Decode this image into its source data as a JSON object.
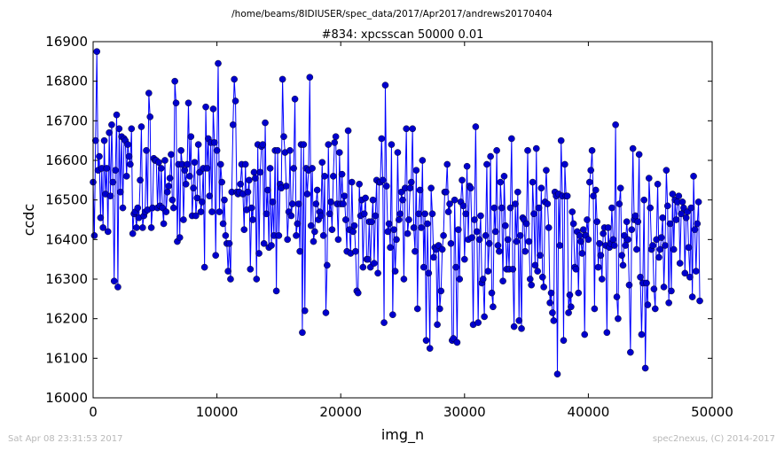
{
  "header": {
    "path": "/home/beams/8IDIUSER/spec_data/2017/Apr2017/andrews20170404"
  },
  "footer": {
    "timestamp": "Sat Apr 08 23:31:53 2017",
    "credit": "spec2nexus, (C) 2014-2017"
  },
  "chart_data": {
    "type": "line",
    "title": "#834: xpcsscan 50000 0.01",
    "xlabel": "img_n",
    "ylabel": "ccdc",
    "xlim": [
      0,
      50000
    ],
    "ylim": [
      16000,
      16900
    ],
    "xticks": [
      0,
      10000,
      20000,
      30000,
      40000,
      50000
    ],
    "yticks": [
      16000,
      16100,
      16200,
      16300,
      16400,
      16500,
      16600,
      16700,
      16800,
      16900
    ],
    "grid": false,
    "line_color": "#0000ff",
    "marker_color": "#0000cc",
    "x_start": 0,
    "x_step": 100,
    "values": [
      16545,
      16410,
      16650,
      16875,
      16575,
      16610,
      16455,
      16580,
      16430,
      16650,
      16515,
      16580,
      16420,
      16670,
      16510,
      16690,
      16545,
      16295,
      16575,
      16715,
      16280,
      16680,
      16520,
      16660,
      16480,
      16655,
      16650,
      16560,
      16640,
      16610,
      16590,
      16680,
      16415,
      16465,
      16470,
      16430,
      16480,
      16455,
      16550,
      16685,
      16430,
      16460,
      16470,
      16625,
      16475,
      16770,
      16710,
      16430,
      16480,
      16605,
      16600,
      16600,
      16480,
      16595,
      16485,
      16580,
      16480,
      16440,
      16600,
      16470,
      16520,
      16535,
      16555,
      16615,
      16500,
      16480,
      16800,
      16745,
      16395,
      16590,
      16405,
      16625,
      16590,
      16450,
      16575,
      16540,
      16590,
      16745,
      16560,
      16660,
      16460,
      16530,
      16595,
      16460,
      16505,
      16640,
      16570,
      16470,
      16495,
      16580,
      16330,
      16735,
      16580,
      16655,
      16510,
      16645,
      16470,
      16730,
      16645,
      16360,
      16625,
      16845,
      16470,
      16590,
      16545,
      16440,
      16500,
      16410,
      16390,
      16320,
      16390,
      16300,
      16520,
      16690,
      16805,
      16750,
      16520,
      16515,
      16520,
      16540,
      16590,
      16515,
      16425,
      16590,
      16475,
      16520,
      16550,
      16325,
      16480,
      16450,
      16570,
      16555,
      16300,
      16640,
      16365,
      16570,
      16635,
      16640,
      16390,
      16695,
      16465,
      16525,
      16380,
      16580,
      16385,
      16495,
      16410,
      16625,
      16270,
      16625,
      16410,
      16540,
      16530,
      16805,
      16660,
      16620,
      16535,
      16400,
      16470,
      16625,
      16460,
      16490,
      16580,
      16755,
      16410,
      16440,
      16490,
      16370,
      16640,
      16165,
      16640,
      16220,
      16580,
      16515,
      16575,
      16810,
      16435,
      16580,
      16395,
      16420,
      16490,
      16525,
      16450,
      16470,
      16460,
      16595,
      16410,
      16560,
      16215,
      16335,
      16640,
      16465,
      16495,
      16425,
      16560,
      16645,
      16660,
      16490,
      16400,
      16620,
      16490,
      16565,
      16490,
      16510,
      16450,
      16370,
      16675,
      16425,
      16365,
      16545,
      16420,
      16435,
      16370,
      16270,
      16265,
      16540,
      16460,
      16500,
      16330,
      16465,
      16505,
      16350,
      16350,
      16445,
      16330,
      16445,
      16500,
      16340,
      16460,
      16550,
      16315,
      16545,
      16545,
      16655,
      16550,
      16190,
      16790,
      16535,
      16420,
      16440,
      16380,
      16640,
      16210,
      16425,
      16320,
      16400,
      16620,
      16450,
      16465,
      16520,
      16500,
      16300,
      16530,
      16680,
      16415,
      16450,
      16530,
      16545,
      16680,
      16430,
      16370,
      16575,
      16225,
      16465,
      16525,
      16430,
      16600,
      16330,
      16465,
      16145,
      16440,
      16315,
      16125,
      16530,
      16465,
      16355,
      16380,
      16375,
      16185,
      16385,
      16225,
      16270,
      16375,
      16410,
      16520,
      16520,
      16590,
      16470,
      16490,
      16390,
      16145,
      16150,
      16500,
      16330,
      16140,
      16425,
      16300,
      16495,
      16550,
      16485,
      16350,
      16465,
      16585,
      16400,
      16535,
      16530,
      16405,
      16185,
      16450,
      16685,
      16420,
      16190,
      16400,
      16460,
      16290,
      16300,
      16205,
      16410,
      16590,
      16320,
      16390,
      16610,
      16265,
      16230,
      16480,
      16420,
      16625,
      16385,
      16370,
      16545,
      16480,
      16295,
      16560,
      16435,
      16325,
      16400,
      16325,
      16480,
      16655,
      16325,
      16180,
      16490,
      16395,
      16520,
      16195,
      16410,
      16175,
      16455,
      16450,
      16370,
      16440,
      16625,
      16395,
      16300,
      16285,
      16545,
      16465,
      16335,
      16630,
      16320,
      16480,
      16360,
      16530,
      16305,
      16280,
      16495,
      16575,
      16490,
      16430,
      16240,
      16265,
      16215,
      16195,
      16520,
      16510,
      16060,
      16515,
      16385,
      16650,
      16510,
      16145,
      16590,
      16510,
      16510,
      16215,
      16260,
      16230,
      16470,
      16440,
      16330,
      16325,
      16420,
      16265,
      16410,
      16395,
      16365,
      16425,
      16160,
      16410,
      16450,
      16400,
      16545,
      16575,
      16625,
      16510,
      16225,
      16525,
      16445,
      16330,
      16390,
      16360,
      16300,
      16415,
      16430,
      16385,
      16165,
      16430,
      16380,
      16390,
      16480,
      16400,
      16385,
      16690,
      16255,
      16200,
      16490,
      16530,
      16360,
      16335,
      16410,
      16385,
      16445,
      16400,
      16285,
      16115,
      16425,
      16630,
      16450,
      16460,
      16375,
      16445,
      16615,
      16305,
      16160,
      16290,
      16500,
      16075,
      16290,
      16235,
      16555,
      16480,
      16375,
      16385,
      16275,
      16225,
      16400,
      16540,
      16355,
      16375,
      16405,
      16455,
      16280,
      16385,
      16575,
      16485,
      16240,
      16440,
      16270,
      16515,
      16375,
      16500,
      16450,
      16495,
      16510,
      16340,
      16465,
      16495,
      16480,
      16315,
      16455,
      16470,
      16380,
      16305,
      16480,
      16255,
      16560,
      16425,
      16320,
      16440,
      16495,
      16245
    ]
  }
}
